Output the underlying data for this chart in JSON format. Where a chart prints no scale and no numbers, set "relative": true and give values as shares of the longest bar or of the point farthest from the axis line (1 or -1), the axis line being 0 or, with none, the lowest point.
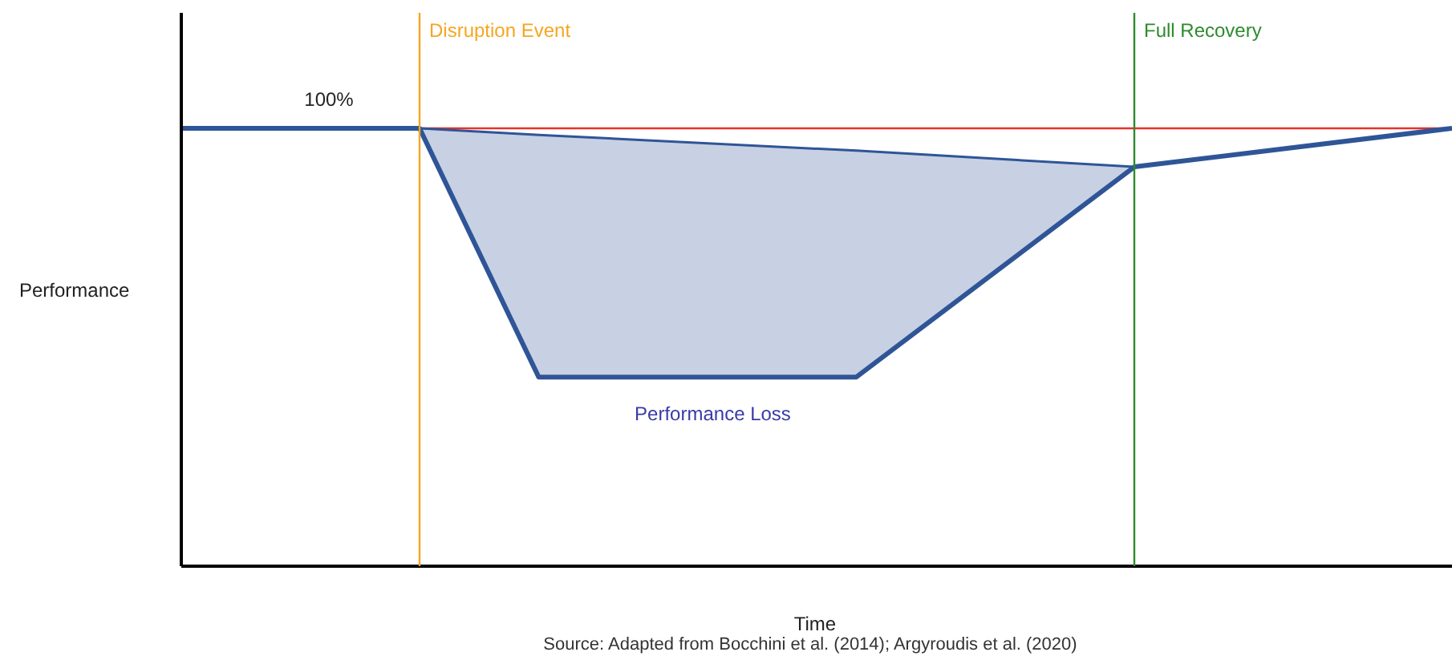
{
  "chart_data": {
    "type": "line",
    "relative": true,
    "xlabel": "Time",
    "ylabel": "Performance",
    "line_style": "solid",
    "categories": [
      null,
      null,
      null,
      null,
      null,
      null,
      null,
      null,
      null,
      null,
      null,
      null,
      null,
      null,
      null,
      null,
      null,
      null,
      null,
      null,
      null,
      null,
      null,
      null,
      null,
      null,
      null,
      null,
      null,
      null,
      null,
      null,
      null
    ],
    "series": [
      {
        "color": "#2f5597",
        "values": [
          1,
          null,
          null,
          null,
          null,
          null,
          1,
          null,
          null,
          0.432,
          null,
          null,
          null,
          null,
          null,
          null,
          null,
          0.432,
          null,
          null,
          null,
          null,
          null,
          null,
          0.912,
          null,
          null,
          null,
          null,
          null,
          null,
          null,
          1
        ]
      },
      {
        "name": "Performance Loss",
        "color": "#2f5597",
        "values": [
          null,
          null,
          null,
          null,
          null,
          null,
          1,
          null,
          null,
          0.985,
          null,
          null,
          null,
          null,
          null,
          null,
          null,
          0.949,
          null,
          null,
          null,
          null,
          null,
          null,
          0.912,
          null,
          null,
          null,
          null,
          null,
          null,
          null,
          null
        ],
        "lower": [
          null,
          null,
          null,
          null,
          null,
          null,
          1,
          null,
          null,
          0.432,
          null,
          null,
          null,
          null,
          null,
          null,
          null,
          0.432,
          null,
          null,
          null,
          null,
          null,
          null,
          0.912,
          null,
          null,
          null,
          null,
          null,
          null,
          null,
          null
        ],
        "upper": [
          null,
          null,
          null,
          null,
          null,
          null,
          1,
          null,
          null,
          0.985,
          null,
          null,
          null,
          null,
          null,
          null,
          null,
          0.949,
          null,
          null,
          null,
          null,
          null,
          null,
          0.912,
          null,
          null,
          null,
          null,
          null,
          null,
          null,
          null
        ]
      }
    ],
    "ref_lines": [
      {
        "axis": "y",
        "value": 1,
        "label": "100%",
        "color": "#e8302a"
      }
    ],
    "annotations": [
      "Disruption Event",
      "Full Recovery",
      "Source: Adapted from Bocchini et al. (2014); Argyroudis et al. (2020)"
    ]
  }
}
